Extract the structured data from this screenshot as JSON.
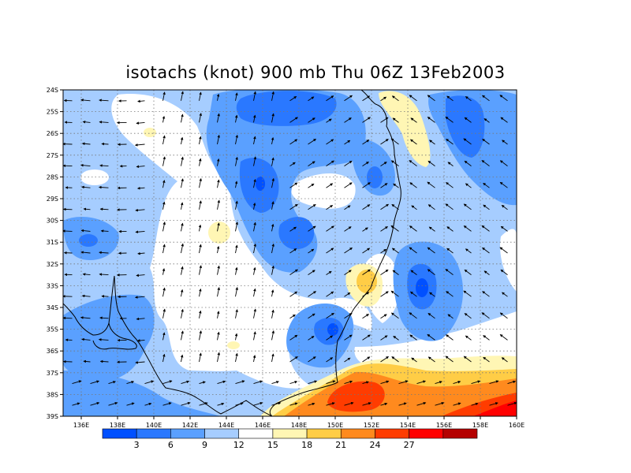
{
  "title": "isotachs (knot) 900 mb Thu 06Z 13Feb2003",
  "map": {
    "lon_ticks": [
      "136E",
      "138E",
      "140E",
      "142E",
      "144E",
      "146E",
      "148E",
      "150E",
      "152E",
      "154E",
      "156E",
      "158E",
      "160E"
    ],
    "lat_ticks": [
      "24S",
      "25S",
      "26S",
      "27S",
      "28S",
      "29S",
      "30S",
      "31S",
      "32S",
      "33S",
      "34S",
      "35S",
      "36S",
      "37S",
      "38S",
      "39S"
    ],
    "lon_range": [
      135,
      160
    ],
    "lat_range": [
      -39,
      -24
    ],
    "grid": "dotted"
  },
  "colorbar": {
    "labels": [
      "3",
      "6",
      "9",
      "12",
      "15",
      "18",
      "21",
      "24",
      "27"
    ],
    "colors": [
      "#0050ff",
      "#2a78ff",
      "#5aa0ff",
      "#a6cdff",
      "#ffffff",
      "#fff6b4",
      "#ffcd46",
      "#ff8a1e",
      "#ff3c00",
      "#ff0000",
      "#b40000"
    ]
  }
}
